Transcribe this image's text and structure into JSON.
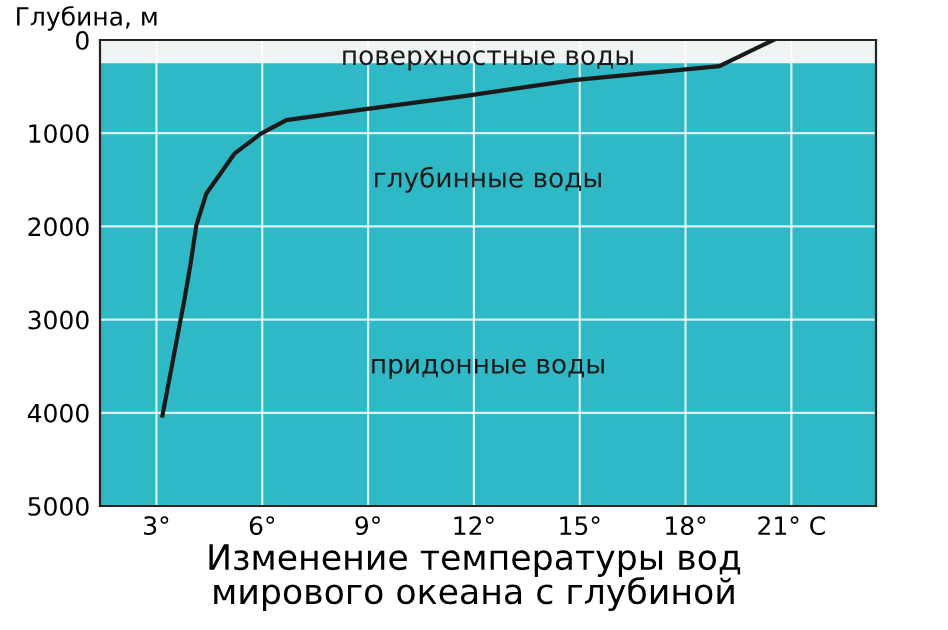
{
  "chart_data": {
    "type": "line",
    "title": "Изменение температуры вод\nмирового океана с глубиной",
    "ylabel": "Глубина, м",
    "x": [
      20.49,
      18.96,
      14.83,
      11.77,
      8.77,
      6.68,
      5.94,
      5.21,
      4.41,
      4.13,
      3.96,
      3.79,
      3.17
    ],
    "series": [
      {
        "color": "#1a1a1a",
        "values": [
          0,
          280,
          430,
          600,
          750,
          860,
          1010,
          1220,
          1650,
          1990,
          2420,
          2790,
          4030
        ]
      }
    ],
    "xlim": [
      1.4,
      23.4
    ],
    "ylim": [
      5000,
      0
    ],
    "xticks": [
      {
        "value": 3,
        "label": "3°"
      },
      {
        "value": 6,
        "label": "6°"
      },
      {
        "value": 9,
        "label": "9°"
      },
      {
        "value": 12,
        "label": "12°"
      },
      {
        "value": 15,
        "label": "15°"
      },
      {
        "value": 18,
        "label": "18°"
      },
      {
        "value": 21,
        "label": "21° C"
      }
    ],
    "yticks": [
      0,
      1000,
      2000,
      3000,
      4000,
      5000
    ],
    "bands": [
      {
        "axis": "y",
        "from": 0,
        "to": 250,
        "color": "#eef3f3"
      },
      {
        "axis": "y",
        "from": 250,
        "to": 5000,
        "color": "#2fb9c6"
      }
    ],
    "annotations": [
      "поверхностные воды",
      "глубинные воды",
      "придонные воды"
    ],
    "grid": true,
    "marker": "none",
    "line_style": "solid"
  }
}
